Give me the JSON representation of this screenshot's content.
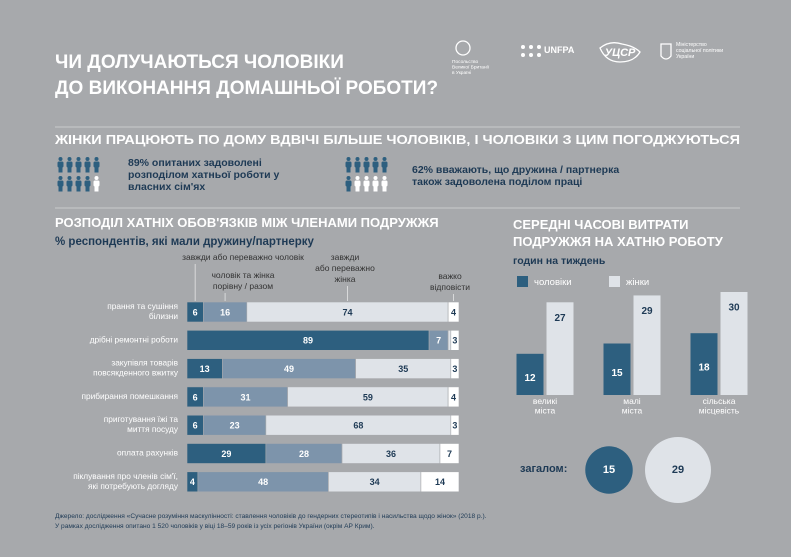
{
  "title": "ЧИ ДОЛУЧАЮТЬСЯ ЧОЛОВІКИ\nДО ВИКОНАННЯ ДОМАШНЬОЇ РОБОТИ?",
  "logos": [
    "Посольство\nВеликої Британії\nв Україні",
    "UNFPA",
    "УЦСР",
    "Міністерство\nсоціальної політики\nУкраїни"
  ],
  "headline": "ЖІНКИ ПРАЦЮЮТЬ ПО ДОМУ ВДВІЧІ БІЛЬШЕ ЧОЛОВІКІВ, І ЧОЛОВІКИ З ЦИМ ПОГОДЖУЮТЬСЯ",
  "stats": [
    "89% опитаних задоволені\nрозподілом хатньої роботи у\nвласних сім'ях",
    "62% вважають, що дружина / партнерка\nтакож задоволена поділом праці"
  ],
  "chart_data": [
    {
      "type": "stacked-bar",
      "title": "РОЗПОДІЛ ХАТНІХ ОБОВ'ЯЗКІВ МІЖ ЧЛЕНАМИ ПОДРУЖЖЯ",
      "subtitle": "% респондентів, які мали дружину/партнерку",
      "categories": [
        "прання та сушіння\nбілизни",
        "дрібні ремонтні роботи",
        "закупівля товарів\nповсякденного вжитку",
        "прибирання помешкання",
        "приготування їжі та\nмиття посуду",
        "оплата рахунків",
        "піклування про членів сім'ї,\nякі потребують догляду"
      ],
      "series": [
        {
          "name": "завжди або переважно чоловік",
          "color": "#2d5f7f",
          "values": [
            6,
            89,
            13,
            6,
            6,
            29,
            4
          ]
        },
        {
          "name": "чоловік та жінка\nпорівну / разом",
          "color": "#7d94ab",
          "values": [
            16,
            7,
            49,
            31,
            23,
            28,
            48
          ]
        },
        {
          "name": "завжди\nабо переважно\nжінка",
          "color": "#dfe3e8",
          "values": [
            74,
            1,
            35,
            59,
            68,
            36,
            34
          ]
        },
        {
          "name": "важко\nвідповісти",
          "color": "#ffffff",
          "values": [
            4,
            3,
            3,
            4,
            3,
            7,
            14
          ]
        }
      ],
      "xlim": [
        0,
        100
      ]
    },
    {
      "type": "grouped-bar",
      "title": "СЕРЕДНІ ЧАСОВІ ВИТРАТИ\nПОДРУЖЖЯ НА ХАТНЮ РОБОТУ",
      "subtitle": "годин на тиждень",
      "categories": [
        "великі\nміста",
        "малі\nміста",
        "сільська\nмісцевість"
      ],
      "series": [
        {
          "name": "чоловіки",
          "color": "#2d5f7f",
          "values": [
            12,
            15,
            18
          ]
        },
        {
          "name": "жінки",
          "color": "#dfe3e8",
          "values": [
            27,
            29,
            30
          ]
        }
      ],
      "ylim": [
        0,
        30
      ],
      "total_label": "загалом:",
      "totals": [
        15,
        29
      ]
    }
  ],
  "source": "Джерело: дослідження «Сучасне розуміння маскулінності: ставлення чоловіків до гендерних стереотипів і насильства щодо жінок» (2018 р.).\nУ рамках дослідження опитано 1 520 чоловіків у віці 18–59 років із усіх регіонів України (окрім АР Крим)."
}
